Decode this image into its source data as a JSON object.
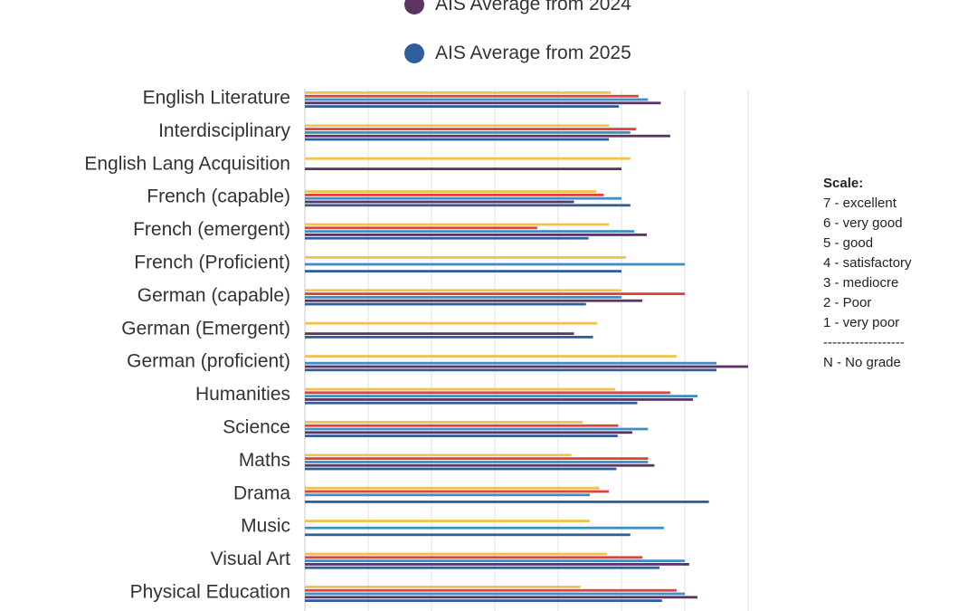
{
  "legend": [
    {
      "label": "AIS Average from 2024",
      "color": "#5b3464"
    },
    {
      "label": "AIS Average from 2025",
      "color": "#2e5f9a"
    }
  ],
  "scale": {
    "title": "Scale:",
    "items": [
      "7 - excellent",
      "6 - very good",
      "5 - good",
      "4 - satisfactory",
      "3 - mediocre",
      "2 - Poor",
      "1 - very poor",
      "------------------",
      "N - No grade"
    ]
  },
  "chart_data": {
    "type": "bar",
    "orientation": "horizontal",
    "xlim": [
      0,
      7
    ],
    "grid": true,
    "categories": [
      "English Literature",
      "Interdisciplinary",
      "English Lang Acquisition",
      "French (capable)",
      "French (emergent)",
      "French (Proficient)",
      "German (capable)",
      "German (Emergent)",
      "German (proficient)",
      "Humanities",
      "Science",
      "Maths",
      "Drama",
      "Music",
      "Visual Art",
      "Physical Education"
    ],
    "series": [
      {
        "color": "#f2c14e",
        "values": [
          4.83,
          4.8,
          5.14,
          4.6,
          4.8,
          5.07,
          5.0,
          4.62,
          5.87,
          4.9,
          4.39,
          4.21,
          4.65,
          4.5,
          4.77,
          4.35
        ]
      },
      {
        "color": "#d9443c",
        "values": [
          5.27,
          5.23,
          null,
          4.72,
          3.67,
          null,
          6.0,
          null,
          null,
          5.77,
          4.95,
          5.42,
          4.8,
          null,
          5.33,
          5.87
        ]
      },
      {
        "color": "#3d8fc4",
        "values": [
          5.42,
          5.14,
          null,
          5.0,
          5.2,
          6.0,
          5.0,
          null,
          6.5,
          6.2,
          5.42,
          5.42,
          4.5,
          5.67,
          6.0,
          6.0
        ]
      },
      {
        "color": "#5b3464",
        "values": [
          5.62,
          5.77,
          5.0,
          4.25,
          5.4,
          null,
          5.33,
          4.25,
          7.0,
          6.13,
          5.17,
          5.52,
          null,
          null,
          6.07,
          6.2
        ]
      },
      {
        "color": "#2e5f9a",
        "values": [
          4.96,
          4.8,
          null,
          5.14,
          4.48,
          5.0,
          4.44,
          4.55,
          6.5,
          5.25,
          4.94,
          4.92,
          6.38,
          5.14,
          5.6,
          5.64
        ]
      }
    ]
  }
}
